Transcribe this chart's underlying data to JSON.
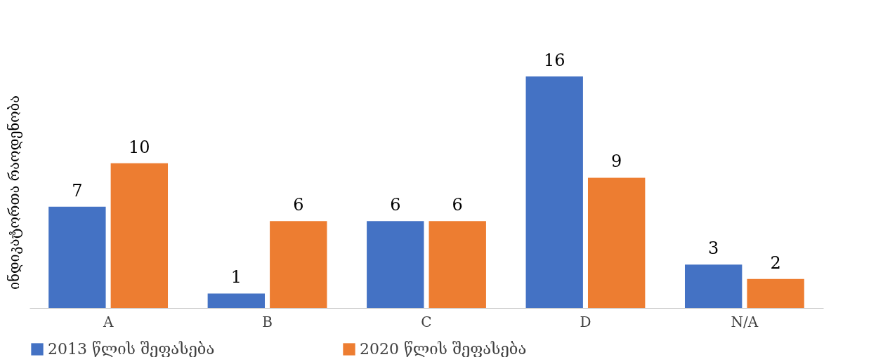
{
  "chart_data": {
    "type": "bar",
    "ylabel": "ინდიკატორთა რაოდენობა",
    "categories": [
      "A",
      "B",
      "C",
      "D",
      "N/A"
    ],
    "series": [
      {
        "name": "2013 წლის შეფასება",
        "color": "#4472c4",
        "values": [
          7,
          1,
          6,
          16,
          3
        ]
      },
      {
        "name": "2020 წლის შეფასება",
        "color": "#ed7d31",
        "values": [
          10,
          6,
          6,
          9,
          2
        ]
      }
    ],
    "data_labels": true,
    "legend": "bottom",
    "grid": false,
    "tick_labels": "x"
  }
}
